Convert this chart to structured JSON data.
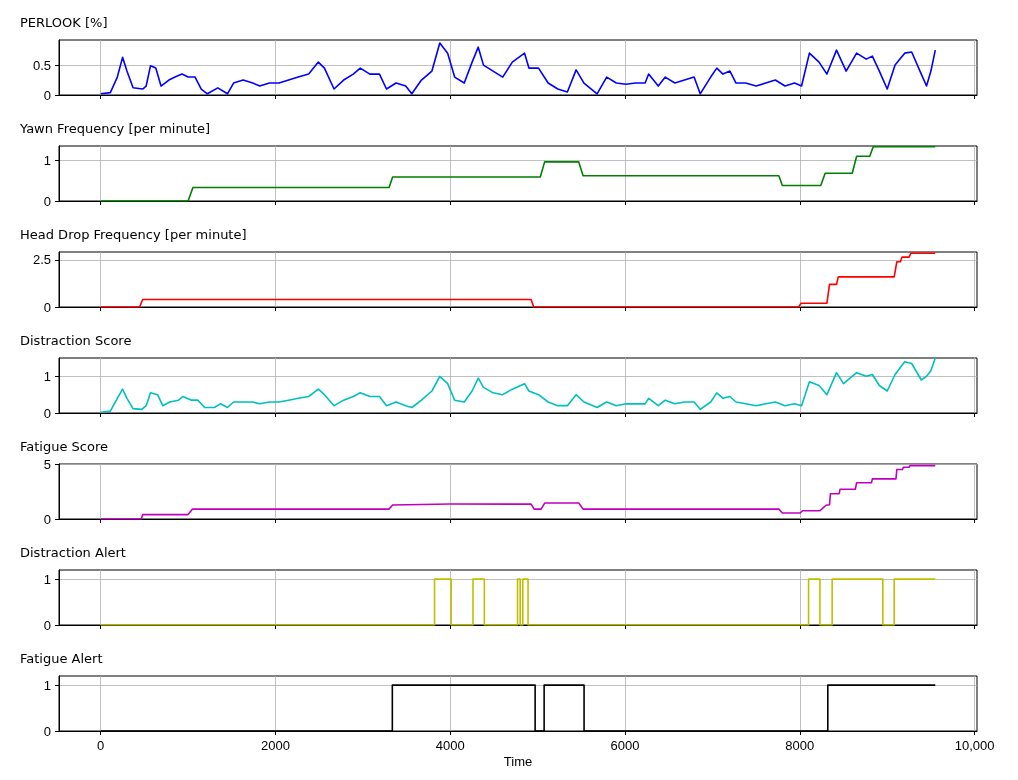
{
  "chart_data": [
    {
      "type": "line",
      "title": "PERLOOK [%]",
      "color": "#0000ff",
      "xlim": [
        -477.5,
        10027.5
      ],
      "xticks": [
        0,
        2000,
        4000,
        6000,
        8000,
        10000
      ],
      "ylim": [
        0,
        0.92
      ],
      "yticks": [
        0.0,
        0.5
      ],
      "grid": true,
      "tick_labels": "y",
      "x": [
        0,
        110,
        190,
        250,
        300,
        370,
        480,
        520,
        570,
        630,
        690,
        780,
        850,
        930,
        1000,
        1080,
        1150,
        1220,
        1340,
        1450,
        1520,
        1630,
        1740,
        1820,
        1930,
        2040,
        2150,
        2260,
        2380,
        2490,
        2560,
        2670,
        2780,
        2890,
        2970,
        3080,
        3190,
        3270,
        3380,
        3490,
        3560,
        3670,
        3790,
        3880,
        3970,
        4050,
        4160,
        4250,
        4320,
        4380,
        4490,
        4600,
        4710,
        4850,
        4900,
        5010,
        5120,
        5230,
        5340,
        5440,
        5530,
        5680,
        5790,
        5900,
        6010,
        6120,
        6230,
        6270,
        6380,
        6460,
        6570,
        6680,
        6790,
        6860,
        6980,
        7050,
        7120,
        7200,
        7270,
        7380,
        7500,
        7610,
        7720,
        7830,
        7940,
        8020,
        8110,
        8220,
        8310,
        8420,
        8530,
        8650,
        8760,
        8830,
        8910,
        9000,
        9090,
        9200,
        9280,
        9390,
        9450,
        9500,
        9550
      ],
      "values": [
        0.02,
        0.04,
        0.3,
        0.63,
        0.4,
        0.12,
        0.1,
        0.15,
        0.49,
        0.45,
        0.15,
        0.25,
        0.3,
        0.35,
        0.3,
        0.3,
        0.1,
        0.02,
        0.12,
        0.02,
        0.2,
        0.25,
        0.2,
        0.15,
        0.2,
        0.2,
        0.25,
        0.3,
        0.35,
        0.55,
        0.45,
        0.1,
        0.25,
        0.35,
        0.45,
        0.35,
        0.35,
        0.1,
        0.2,
        0.15,
        0.02,
        0.25,
        0.4,
        0.87,
        0.7,
        0.3,
        0.2,
        0.55,
        0.8,
        0.5,
        0.4,
        0.3,
        0.55,
        0.7,
        0.45,
        0.45,
        0.2,
        0.1,
        0.05,
        0.42,
        0.2,
        0.02,
        0.3,
        0.2,
        0.18,
        0.2,
        0.2,
        0.35,
        0.15,
        0.3,
        0.2,
        0.25,
        0.3,
        0.02,
        0.3,
        0.45,
        0.35,
        0.4,
        0.2,
        0.2,
        0.15,
        0.2,
        0.25,
        0.15,
        0.2,
        0.15,
        0.7,
        0.55,
        0.35,
        0.75,
        0.4,
        0.7,
        0.6,
        0.65,
        0.4,
        0.1,
        0.5,
        0.7,
        0.72,
        0.35,
        0.15,
        0.4,
        0.75
      ]
    },
    {
      "type": "line",
      "title": "Yawn Frequency [per minute]",
      "color": "#008000",
      "xlim": [
        -477.5,
        10027.5
      ],
      "xticks": [
        0,
        2000,
        4000,
        6000,
        8000,
        10000
      ],
      "ylim": [
        0,
        1.35
      ],
      "yticks": [
        0,
        1
      ],
      "grid": true,
      "tick_labels": "y",
      "x": [
        0,
        1000,
        1055,
        3300,
        3340,
        5030,
        5080,
        5470,
        5520,
        7760,
        7800,
        8240,
        8290,
        8600,
        8650,
        8800,
        8840,
        9550
      ],
      "values": [
        0,
        0,
        0.33,
        0.33,
        0.59,
        0.59,
        0.96,
        0.96,
        0.62,
        0.62,
        0.38,
        0.38,
        0.68,
        0.68,
        1.1,
        1.1,
        1.33,
        1.33
      ]
    },
    {
      "type": "line",
      "title": "Head Drop Frequency [per minute]",
      "color": "#ff0000",
      "xlim": [
        -477.5,
        10027.5
      ],
      "xticks": [
        0,
        2000,
        4000,
        6000,
        8000,
        10000
      ],
      "ylim": [
        0,
        2.92
      ],
      "yticks": [
        0.0,
        2.5
      ],
      "grid": true,
      "tick_labels": "y",
      "x": [
        0,
        445,
        480,
        4925,
        4955,
        7985,
        8015,
        8310,
        8340,
        8420,
        8440,
        9080,
        9110,
        9150,
        9170,
        9250,
        9270,
        9550
      ],
      "values": [
        0,
        0,
        0.4,
        0.4,
        0,
        0,
        0.2,
        0.2,
        1.2,
        1.2,
        1.6,
        1.6,
        2.4,
        2.4,
        2.65,
        2.65,
        2.85,
        2.85
      ]
    },
    {
      "type": "line",
      "title": "Distraction Score",
      "color": "#00bfbf",
      "xlim": [
        -477.5,
        10027.5
      ],
      "xticks": [
        0,
        2000,
        4000,
        6000,
        8000,
        10000
      ],
      "ylim": [
        0,
        1.5
      ],
      "yticks": [
        0,
        1
      ],
      "grid": true,
      "tick_labels": "y",
      "x": [
        0,
        110,
        190,
        250,
        300,
        370,
        470,
        520,
        570,
        650,
        710,
        790,
        890,
        940,
        1040,
        1110,
        1190,
        1300,
        1370,
        1450,
        1520,
        1630,
        1740,
        1820,
        1930,
        2040,
        2150,
        2260,
        2380,
        2490,
        2560,
        2670,
        2780,
        2890,
        2970,
        3080,
        3190,
        3270,
        3380,
        3490,
        3560,
        3670,
        3790,
        3880,
        3970,
        4050,
        4160,
        4250,
        4320,
        4380,
        4490,
        4600,
        4710,
        4850,
        4900,
        5010,
        5120,
        5230,
        5340,
        5440,
        5530,
        5680,
        5790,
        5900,
        6010,
        6120,
        6230,
        6270,
        6380,
        6460,
        6570,
        6680,
        6790,
        6860,
        6980,
        7050,
        7120,
        7200,
        7270,
        7380,
        7500,
        7610,
        7720,
        7830,
        7940,
        8020,
        8110,
        8220,
        8310,
        8420,
        8500,
        8650,
        8760,
        8830,
        8910,
        9000,
        9090,
        9200,
        9280,
        9390,
        9450,
        9500,
        9550
      ],
      "values": [
        0.02,
        0.05,
        0.4,
        0.65,
        0.4,
        0.12,
        0.1,
        0.2,
        0.55,
        0.5,
        0.2,
        0.3,
        0.35,
        0.45,
        0.35,
        0.35,
        0.15,
        0.15,
        0.25,
        0.15,
        0.3,
        0.3,
        0.3,
        0.25,
        0.3,
        0.3,
        0.35,
        0.4,
        0.45,
        0.65,
        0.5,
        0.2,
        0.35,
        0.45,
        0.55,
        0.45,
        0.45,
        0.2,
        0.3,
        0.2,
        0.15,
        0.35,
        0.6,
        1.0,
        0.8,
        0.35,
        0.3,
        0.6,
        0.95,
        0.7,
        0.55,
        0.5,
        0.65,
        0.8,
        0.6,
        0.5,
        0.3,
        0.2,
        0.2,
        0.5,
        0.3,
        0.15,
        0.3,
        0.2,
        0.25,
        0.25,
        0.25,
        0.4,
        0.2,
        0.35,
        0.25,
        0.3,
        0.3,
        0.1,
        0.3,
        0.55,
        0.4,
        0.45,
        0.3,
        0.25,
        0.2,
        0.25,
        0.3,
        0.2,
        0.25,
        0.2,
        0.85,
        0.75,
        0.5,
        1.1,
        0.8,
        1.1,
        1.0,
        1.05,
        0.75,
        0.6,
        1.05,
        1.4,
        1.35,
        0.9,
        1.0,
        1.15,
        1.5
      ]
    },
    {
      "type": "line",
      "title": "Fatigue Score",
      "color": "#bf00bf",
      "xlim": [
        -477.5,
        10027.5
      ],
      "xticks": [
        0,
        2000,
        4000,
        6000,
        8000,
        10000
      ],
      "ylim": [
        0,
        5
      ],
      "yticks": [
        0,
        5
      ],
      "grid": true,
      "tick_labels": "y",
      "x": [
        0,
        300,
        465,
        480,
        1000,
        1050,
        3300,
        3340,
        4000,
        4925,
        4960,
        5040,
        5080,
        5470,
        5520,
        7760,
        7800,
        8005,
        8030,
        8230,
        8300,
        8340,
        8350,
        8450,
        8460,
        8635,
        8650,
        8820,
        8830,
        9100,
        9110,
        9175,
        9185,
        9250,
        9260,
        9550
      ],
      "values": [
        0,
        0,
        0,
        0.4,
        0.4,
        0.9,
        0.9,
        1.27,
        1.36,
        1.35,
        0.9,
        0.9,
        1.45,
        1.45,
        0.9,
        0.9,
        0.55,
        0.55,
        0.75,
        0.75,
        1.25,
        1.3,
        2.3,
        2.3,
        2.7,
        2.7,
        3.3,
        3.3,
        3.65,
        3.65,
        4.5,
        4.5,
        4.7,
        4.7,
        4.85,
        4.85
      ]
    },
    {
      "type": "line",
      "title": "Distraction Alert",
      "color": "#bfbf00",
      "xlim": [
        -477.5,
        10027.5
      ],
      "xticks": [
        0,
        2000,
        4000,
        6000,
        8000,
        10000
      ],
      "ylim": [
        0,
        1.2
      ],
      "yticks": [
        0,
        1
      ],
      "grid": true,
      "tick_labels": "y",
      "x": [
        0,
        3820,
        3820,
        4010,
        4010,
        4260,
        4260,
        4390,
        4390,
        4770,
        4770,
        4800,
        4800,
        4830,
        4830,
        4890,
        4890,
        8100,
        8100,
        8230,
        8230,
        8370,
        8370,
        8950,
        8950,
        9080,
        9080,
        9550
      ],
      "values": [
        0,
        0,
        1,
        1,
        0,
        0,
        1,
        1,
        0,
        0,
        1,
        1,
        0,
        0,
        1,
        1,
        0,
        0,
        1,
        1,
        0,
        0,
        1,
        1,
        0,
        0,
        1,
        1
      ]
    },
    {
      "type": "line",
      "title": "Fatigue Alert",
      "color": "#000000",
      "xlabel": "Time",
      "xlim": [
        -477.5,
        10027.5
      ],
      "xticks": [
        0,
        2000,
        4000,
        6000,
        8000,
        {
          "value": 10000,
          "label": "10,000"
        }
      ],
      "ylim": [
        0,
        1.2
      ],
      "yticks": [
        0,
        1
      ],
      "grid": true,
      "x": [
        0,
        3337,
        3337,
        4971,
        4971,
        5074,
        5074,
        5531,
        5531,
        8320,
        8320,
        9550
      ],
      "values": [
        0,
        0,
        1,
        1,
        0,
        0,
        1,
        1,
        0,
        0,
        1,
        1
      ]
    }
  ]
}
